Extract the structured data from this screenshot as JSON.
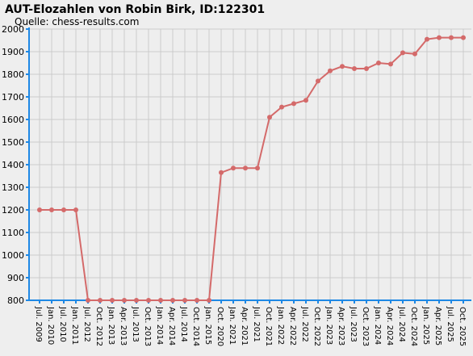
{
  "chart_data": {
    "type": "line",
    "title": "AUT-Elozahlen von Robin Birk, ID:122301",
    "subtitle": "Quelle: chess-results.com",
    "categories": [
      "Jul. 2009",
      "Jan. 2010",
      "Jul. 2010",
      "Jan. 2011",
      "Jul. 2012",
      "Oct. 2012",
      "Jan. 2013",
      "Apr. 2013",
      "Jul. 2013",
      "Oct. 2013",
      "Jan. 2014",
      "Apr. 2014",
      "Jul. 2014",
      "Oct. 2014",
      "Jan. 2015",
      "Oct. 2020",
      "Jan. 2021",
      "Apr. 2021",
      "Jul. 2021",
      "Oct. 2021",
      "Jan. 2022",
      "Apr. 2022",
      "Jul. 2022",
      "Oct. 2022",
      "Jan. 2023",
      "Apr. 2023",
      "Jul. 2023",
      "Oct. 2023",
      "Jan. 2024",
      "Apr. 2024",
      "Jul. 2024",
      "Oct. 2024",
      "Jan. 2025",
      "Apr. 2025",
      "Jul. 2025",
      "Oct. 2025"
    ],
    "values": [
      1200,
      1200,
      1200,
      1200,
      800,
      800,
      800,
      800,
      800,
      800,
      800,
      800,
      800,
      800,
      800,
      1365,
      1385,
      1385,
      1385,
      1610,
      1655,
      1670,
      1685,
      1770,
      1815,
      1835,
      1825,
      1825,
      1850,
      1845,
      1895,
      1890,
      1955,
      1962,
      1962,
      1962
    ],
    "color": "#d46a6a",
    "ylim": [
      800,
      2000
    ],
    "yticks": [
      800,
      900,
      1000,
      1100,
      1200,
      1300,
      1400,
      1500,
      1600,
      1700,
      1800,
      1900,
      2000
    ],
    "grid": true
  }
}
